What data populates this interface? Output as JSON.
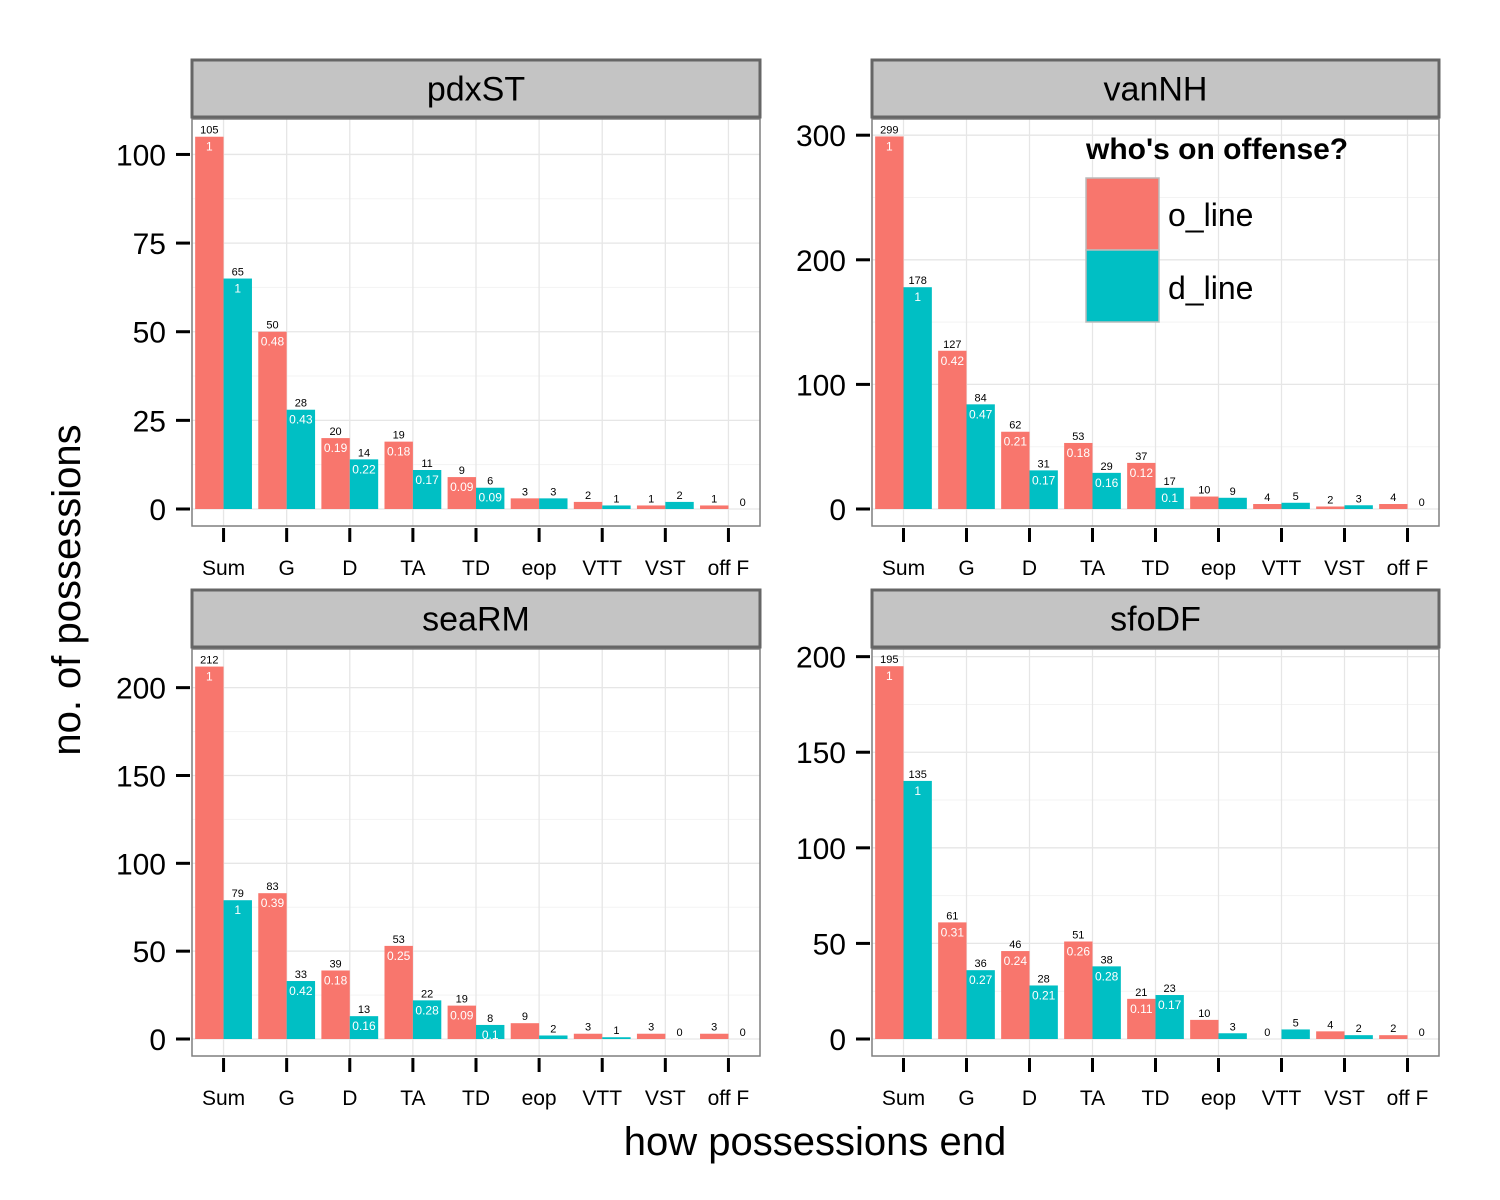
{
  "chart_data": {
    "type": "bar",
    "xlabel": "how possessions end",
    "ylabel": "no. of possessions",
    "categories": [
      "Sum",
      "G",
      "D",
      "TA",
      "TD",
      "eop",
      "VTT",
      "VST",
      "off F"
    ],
    "legend": {
      "title": "who's on offense?",
      "placement": "top-right",
      "entries": [
        {
          "key": "o_line",
          "label": "o_line",
          "color": "#F8766D"
        },
        {
          "key": "d_line",
          "label": "d_line",
          "color": "#00BFC4"
        }
      ]
    },
    "grid": true,
    "panels": [
      {
        "title": "pdxST",
        "ylim": [
          0,
          110
        ],
        "yticks": [
          0,
          25,
          50,
          75,
          100
        ],
        "series": [
          {
            "name": "o_line",
            "values": [
              105,
              50,
              20,
              19,
              9,
              3,
              2,
              1,
              1
            ],
            "proportions": [
              "1",
              "0.48",
              "0.19",
              "0.18",
              "0.09",
              null,
              null,
              null,
              null
            ]
          },
          {
            "name": "d_line",
            "values": [
              65,
              28,
              14,
              11,
              6,
              3,
              1,
              2,
              0
            ],
            "proportions": [
              "1",
              "0.43",
              "0.22",
              "0.17",
              "0.09",
              null,
              null,
              null,
              null
            ]
          }
        ]
      },
      {
        "title": "vanNH",
        "ylim": [
          0,
          313
        ],
        "yticks": [
          0,
          100,
          200,
          300
        ],
        "series": [
          {
            "name": "o_line",
            "values": [
              299,
              127,
              62,
              53,
              37,
              10,
              4,
              2,
              4
            ],
            "proportions": [
              "1",
              "0.42",
              "0.21",
              "0.18",
              "0.12",
              null,
              null,
              null,
              null
            ]
          },
          {
            "name": "d_line",
            "values": [
              178,
              84,
              31,
              29,
              17,
              9,
              5,
              3,
              0
            ],
            "proportions": [
              "1",
              "0.47",
              "0.17",
              "0.16",
              "0.1",
              null,
              null,
              null,
              null
            ]
          }
        ]
      },
      {
        "title": "seaRM",
        "ylim": [
          0,
          222
        ],
        "yticks": [
          0,
          50,
          100,
          150,
          200
        ],
        "series": [
          {
            "name": "o_line",
            "values": [
              212,
              83,
              39,
              53,
              19,
              9,
              3,
              3,
              3
            ],
            "proportions": [
              "1",
              "0.39",
              "0.18",
              "0.25",
              "0.09",
              null,
              null,
              null,
              null
            ]
          },
          {
            "name": "d_line",
            "values": [
              79,
              33,
              13,
              22,
              8,
              2,
              1,
              0,
              0
            ],
            "proportions": [
              "1",
              "0.42",
              "0.16",
              "0.28",
              "0.1",
              null,
              null,
              null,
              null
            ]
          }
        ]
      },
      {
        "title": "sfoDF",
        "ylim": [
          0,
          204
        ],
        "yticks": [
          0,
          50,
          100,
          150,
          200
        ],
        "series": [
          {
            "name": "o_line",
            "values": [
              195,
              61,
              46,
              51,
              21,
              10,
              0,
              4,
              2
            ],
            "proportions": [
              "1",
              "0.31",
              "0.24",
              "0.26",
              "0.11",
              null,
              null,
              null,
              null
            ]
          },
          {
            "name": "d_line",
            "values": [
              135,
              36,
              28,
              38,
              23,
              3,
              5,
              2,
              0
            ],
            "proportions": [
              "1",
              "0.27",
              "0.21",
              "0.28",
              "0.17",
              null,
              null,
              null,
              null
            ]
          }
        ]
      }
    ]
  }
}
